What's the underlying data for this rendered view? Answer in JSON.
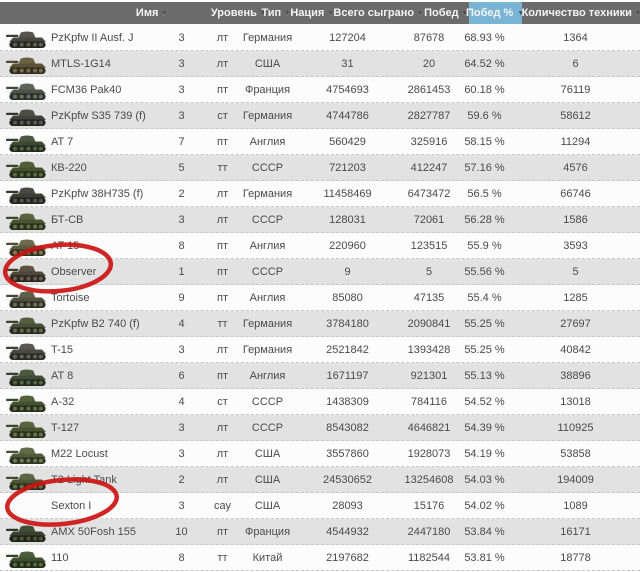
{
  "colors": {
    "header_bg": "#6b6b6b",
    "header_text": "#f4f4f4",
    "sorted_header_bg": "#7ab4d5",
    "row_bg": "#fcfcfc",
    "row_alt_bg": "#e2e2e2",
    "row_text": "#4a4a4a",
    "divider": "#c6c6c6",
    "annotation_red": "#cc1412"
  },
  "table": {
    "columns": [
      {
        "id": "name",
        "label": "Имя",
        "sort_icon": "diamond",
        "active": false
      },
      {
        "id": "level",
        "label": "Уровень",
        "sort_icon": "diamond",
        "active": false
      },
      {
        "id": "type",
        "label": "Тип",
        "sort_icon": "diamond",
        "active": false
      },
      {
        "id": "nation",
        "label": "Нация",
        "sort_icon": "diamond",
        "active": false
      },
      {
        "id": "total",
        "label": "Всего сыграно",
        "sort_icon": "diamond",
        "active": false
      },
      {
        "id": "wins",
        "label": "Побед",
        "sort_icon": "diamond",
        "active": false
      },
      {
        "id": "pct",
        "label": "Побед %",
        "sort_icon": "triangle-down",
        "active": true
      },
      {
        "id": "count",
        "label": "Количество техники",
        "sort_icon": "diamond",
        "active": false
      }
    ],
    "rows": [
      {
        "name": "PzKpfw II Ausf. J",
        "level": "3",
        "type": "лт",
        "nation": "Германия",
        "total": "127204",
        "wins": "87678",
        "pct": "68.93 %",
        "count": "1364",
        "icon": {
          "show": true,
          "color": "#474740"
        }
      },
      {
        "name": "MTLS-1G14",
        "level": "3",
        "type": "лт",
        "nation": "США",
        "total": "31",
        "wins": "20",
        "pct": "64.52 %",
        "count": "6",
        "icon": {
          "show": true,
          "color": "#5a5138"
        }
      },
      {
        "name": "FCM36 Pak40",
        "level": "3",
        "type": "пт",
        "nation": "Франция",
        "total": "4754693",
        "wins": "2861453",
        "pct": "60.18 %",
        "count": "76119",
        "icon": {
          "show": true,
          "color": "#4f544a"
        }
      },
      {
        "name": "PzKpfw S35 739 (f)",
        "level": "3",
        "type": "ст",
        "nation": "Германия",
        "total": "4744786",
        "wins": "2827787",
        "pct": "59.6 %",
        "count": "58612",
        "icon": {
          "show": true,
          "color": "#42423c"
        }
      },
      {
        "name": "AT 7",
        "level": "7",
        "type": "пт",
        "nation": "Англия",
        "total": "560429",
        "wins": "325916",
        "pct": "58.15 %",
        "count": "11294",
        "icon": {
          "show": true,
          "color": "#3f4a33"
        }
      },
      {
        "name": "КВ-220",
        "level": "5",
        "type": "тт",
        "nation": "СССР",
        "total": "721203",
        "wins": "412247",
        "pct": "57.16 %",
        "count": "4576",
        "icon": {
          "show": true,
          "color": "#44502e"
        }
      },
      {
        "name": "PzKpfw 38H735 (f)",
        "level": "2",
        "type": "лт",
        "nation": "Германия",
        "total": "11458469",
        "wins": "6473472",
        "pct": "56.5 %",
        "count": "66746",
        "icon": {
          "show": true,
          "color": "#3e3e38"
        }
      },
      {
        "name": "БТ-СВ",
        "level": "3",
        "type": "лт",
        "nation": "СССР",
        "total": "128031",
        "wins": "72061",
        "pct": "56.28 %",
        "count": "1586",
        "icon": {
          "show": true,
          "color": "#4c5433"
        }
      },
      {
        "name": "AT 15",
        "level": "8",
        "type": "пт",
        "nation": "Англия",
        "total": "220960",
        "wins": "123515",
        "pct": "55.9 %",
        "count": "3593",
        "icon": {
          "show": true,
          "color": "#5d5a40"
        }
      },
      {
        "name": "Observer",
        "level": "1",
        "type": "пт",
        "nation": "СССР",
        "total": "9",
        "wins": "5",
        "pct": "55.56 %",
        "count": "5",
        "icon": {
          "show": true,
          "color": "#4e463a"
        }
      },
      {
        "name": "Tortoise",
        "level": "9",
        "type": "пт",
        "nation": "Англия",
        "total": "85080",
        "wins": "47135",
        "pct": "55.4 %",
        "count": "1285",
        "icon": {
          "show": true,
          "color": "#50523f"
        }
      },
      {
        "name": "PzKpfw B2 740 (f)",
        "level": "4",
        "type": "тт",
        "nation": "Германия",
        "total": "3784180",
        "wins": "2090841",
        "pct": "55.25 %",
        "count": "27697",
        "icon": {
          "show": true,
          "color": "#4a4f38"
        }
      },
      {
        "name": "T-15",
        "level": "3",
        "type": "лт",
        "nation": "Германия",
        "total": "2521842",
        "wins": "1393428",
        "pct": "55.25 %",
        "count": "40842",
        "icon": {
          "show": true,
          "color": "#4a4a44"
        }
      },
      {
        "name": "AT 8",
        "level": "6",
        "type": "пт",
        "nation": "Англия",
        "total": "1671197",
        "wins": "921301",
        "pct": "55.13 %",
        "count": "38896",
        "icon": {
          "show": true,
          "color": "#414b35"
        }
      },
      {
        "name": "A-32",
        "level": "4",
        "type": "ст",
        "nation": "СССР",
        "total": "1438309",
        "wins": "784116",
        "pct": "54.52 %",
        "count": "13018",
        "icon": {
          "show": true,
          "color": "#475232"
        }
      },
      {
        "name": "T-127",
        "level": "3",
        "type": "лт",
        "nation": "СССР",
        "total": "8543082",
        "wins": "4646821",
        "pct": "54.39 %",
        "count": "110925",
        "icon": {
          "show": true,
          "color": "#4b5534"
        }
      },
      {
        "name": "M22 Locust",
        "level": "3",
        "type": "лт",
        "nation": "США",
        "total": "3557860",
        "wins": "1928073",
        "pct": "54.19 %",
        "count": "53858",
        "icon": {
          "show": true,
          "color": "#535a3d"
        }
      },
      {
        "name": "T2 Light Tank",
        "level": "2",
        "type": "лт",
        "nation": "США",
        "total": "24530652",
        "wins": "13254608",
        "pct": "54.03 %",
        "count": "194009",
        "icon": {
          "show": true,
          "color": "#4f5638"
        }
      },
      {
        "name": "Sexton I",
        "level": "3",
        "type": "сау",
        "nation": "США",
        "total": "28093",
        "wins": "15176",
        "pct": "54.02 %",
        "count": "1089",
        "icon": {
          "show": false,
          "color": "#4f5638"
        }
      },
      {
        "name": "AMX 50Fosh 155",
        "level": "10",
        "type": "пт",
        "nation": "Франция",
        "total": "4544932",
        "wins": "2447180",
        "pct": "53.84 %",
        "count": "16171",
        "icon": {
          "show": true,
          "color": "#39422e"
        }
      },
      {
        "name": "110",
        "level": "8",
        "type": "тт",
        "nation": "Китай",
        "total": "2197682",
        "wins": "1182544",
        "pct": "53.81 %",
        "count": "18778",
        "icon": {
          "show": true,
          "color": "#3f5030"
        }
      }
    ]
  },
  "annotations": {
    "highlighted_rows": [
      "Observer",
      "Sexton I"
    ]
  }
}
